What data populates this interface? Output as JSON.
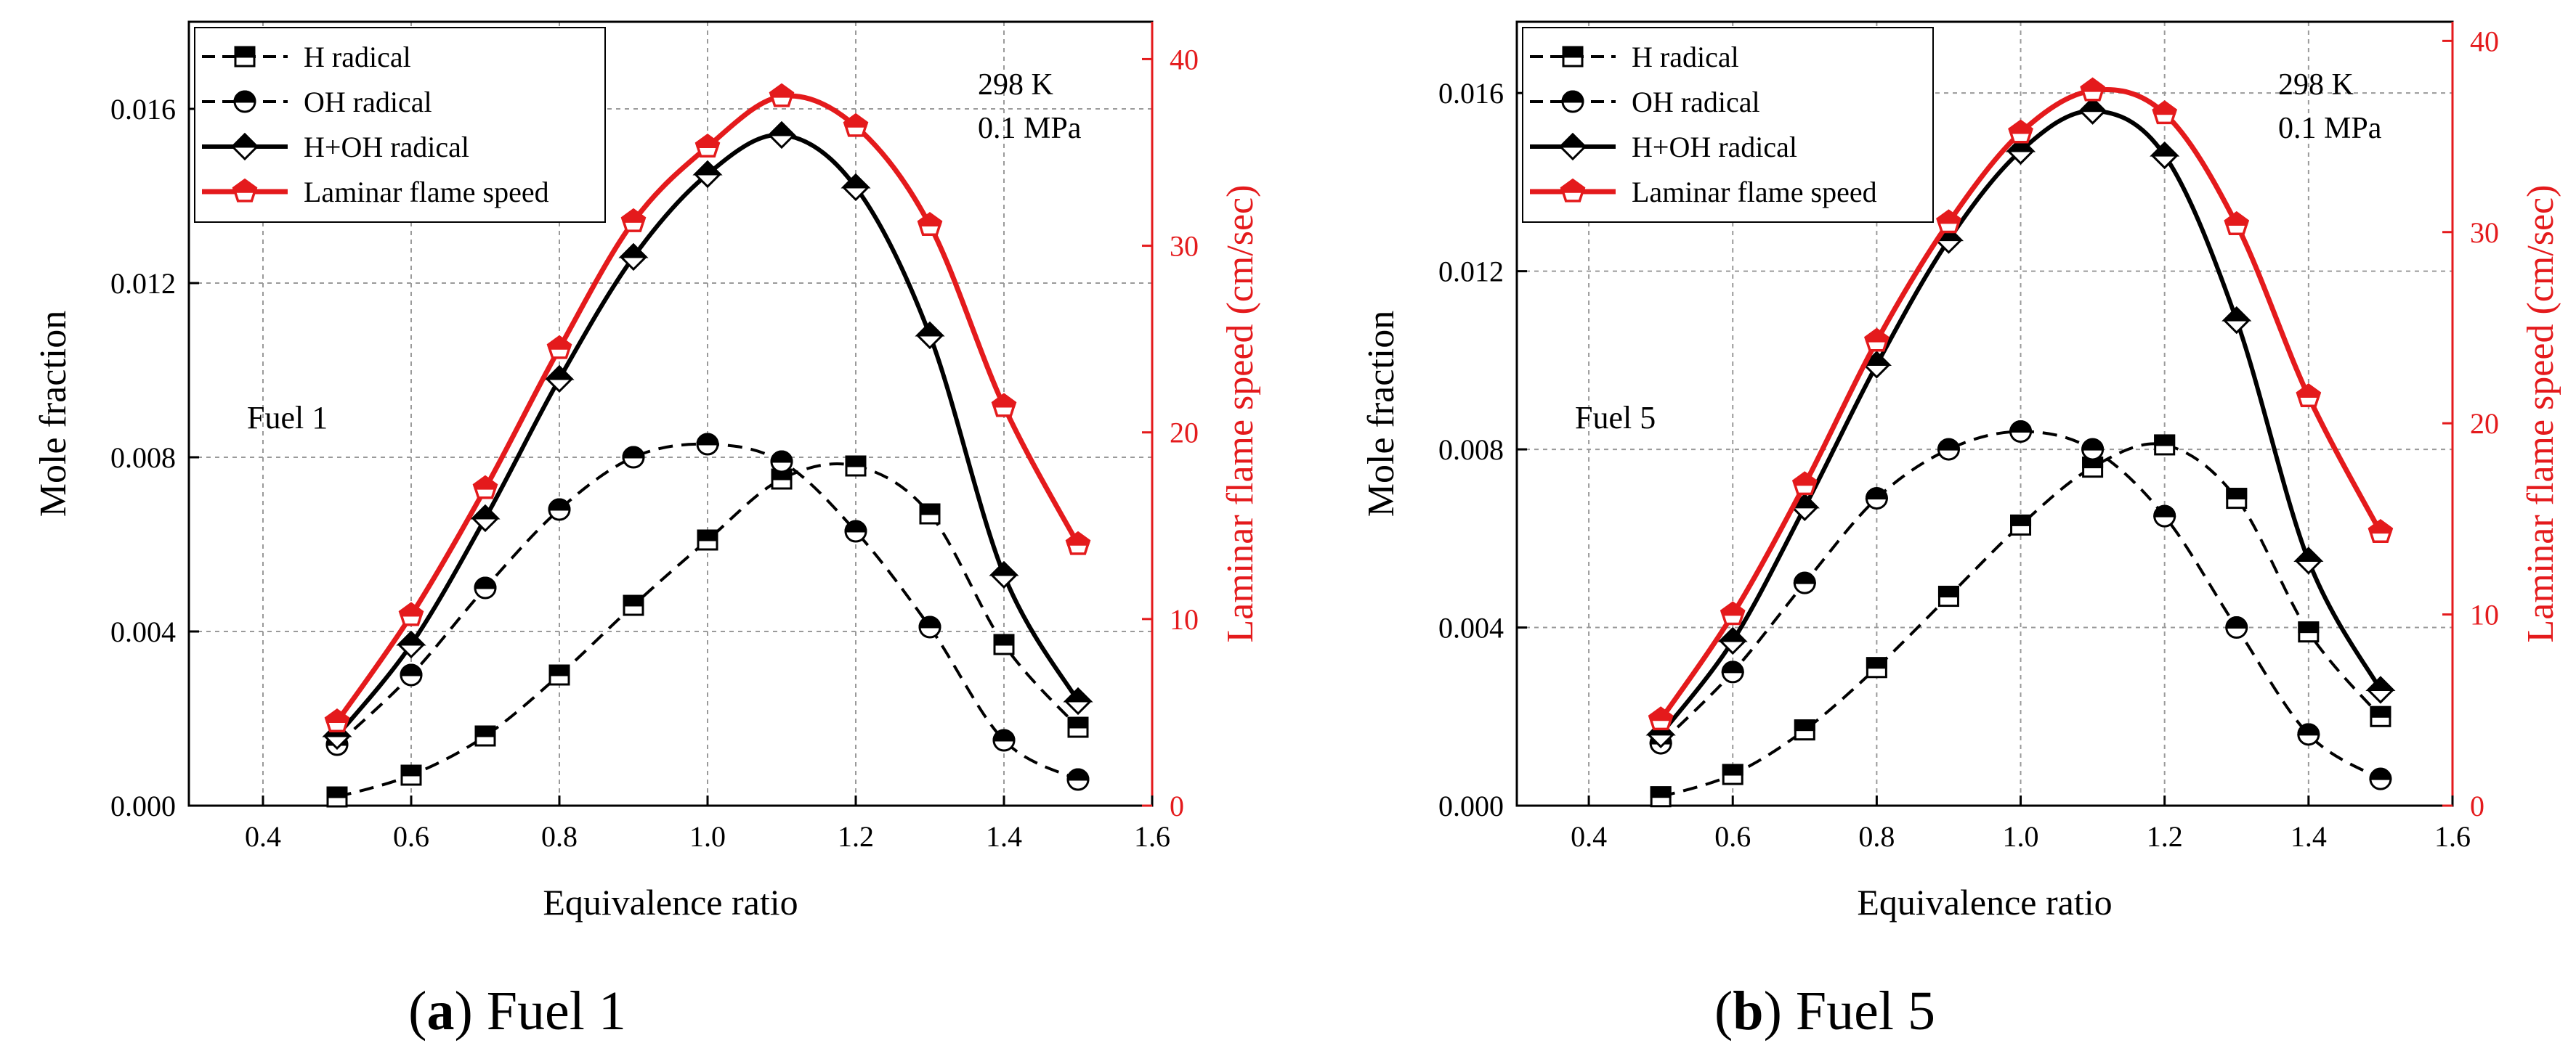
{
  "figure": {
    "panels": [
      {
        "id": "a",
        "caption_letter": "a",
        "caption_text": "Fuel 1",
        "fuel_label": "Fuel 1",
        "caption_paren_open": "(",
        "caption_paren_close": ")"
      },
      {
        "id": "b",
        "caption_letter": "b",
        "caption_text": "Fuel 5",
        "fuel_label": "Fuel 5",
        "caption_paren_open": "(",
        "caption_paren_close": ")"
      }
    ]
  },
  "colors": {
    "flame": "#e41a1c",
    "radical": "#000000",
    "grid": "#9a9a9a"
  },
  "chart_data": [
    {
      "type": "line",
      "panel": "a",
      "title": "Fuel 1",
      "annotation": [
        "298 K",
        "0.1 MPa"
      ],
      "xlabel": "Equivalence ratio",
      "ylabel": "Mole fraction",
      "y2label": "Laminar flame speed (cm/sec)",
      "xlim": [
        0.3,
        1.6
      ],
      "ylim": [
        0,
        0.018
      ],
      "y2lim": [
        0,
        42
      ],
      "xticks": [
        0.4,
        0.6,
        0.8,
        1.0,
        1.2,
        1.4,
        1.6
      ],
      "xtick_labels": [
        "0.4",
        "0.6",
        "0.8",
        "1.0",
        "1.2",
        "1.4",
        "1.6"
      ],
      "yticks": [
        0,
        0.004,
        0.008,
        0.012,
        0.016
      ],
      "ytick_labels": [
        "0.000",
        "0.004",
        "0.008",
        "0.012",
        "0.016"
      ],
      "y2ticks": [
        0,
        10,
        20,
        30,
        40
      ],
      "y2tick_labels": [
        "0",
        "10",
        "20",
        "30",
        "40"
      ],
      "grid": true,
      "legend_position": "top-left",
      "x": [
        0.5,
        0.6,
        0.7,
        0.8,
        0.9,
        1.0,
        1.1,
        1.2,
        1.3,
        1.4,
        1.5
      ],
      "series": [
        {
          "name": "H radical",
          "axis": "left",
          "style": "dashed",
          "marker": "square-half",
          "color": "#000000",
          "values": [
            0.0002,
            0.0007,
            0.0016,
            0.003,
            0.0046,
            0.0061,
            0.0075,
            0.0078,
            0.0067,
            0.0037,
            0.0018
          ]
        },
        {
          "name": "OH radical",
          "axis": "left",
          "style": "dashed",
          "marker": "circle-half",
          "color": "#000000",
          "values": [
            0.0014,
            0.003,
            0.005,
            0.0068,
            0.008,
            0.0083,
            0.0079,
            0.0063,
            0.0041,
            0.0015,
            0.0006
          ]
        },
        {
          "name": "H+OH radical",
          "axis": "left",
          "style": "solid",
          "marker": "diamond-half",
          "color": "#000000",
          "values": [
            0.0016,
            0.0037,
            0.0066,
            0.0098,
            0.0126,
            0.0145,
            0.0154,
            0.0142,
            0.0108,
            0.0053,
            0.0024
          ]
        },
        {
          "name": "Laminar flame speed",
          "axis": "right",
          "style": "solid",
          "marker": "pentagon-half",
          "color": "#e41a1c",
          "values": [
            4.5,
            10.2,
            17.0,
            24.5,
            31.3,
            35.3,
            38.0,
            36.4,
            31.1,
            21.4,
            14.0
          ]
        }
      ]
    },
    {
      "type": "line",
      "panel": "b",
      "title": "Fuel 5",
      "annotation": [
        "298 K",
        "0.1 MPa"
      ],
      "xlabel": "Equivalence ratio",
      "ylabel": "Mole fraction",
      "y2label": "Laminar flame speed (cm/sec)",
      "xlim": [
        0.3,
        1.6
      ],
      "ylim": [
        0,
        0.0176
      ],
      "y2lim": [
        0,
        41
      ],
      "xticks": [
        0.4,
        0.6,
        0.8,
        1.0,
        1.2,
        1.4,
        1.6
      ],
      "xtick_labels": [
        "0.4",
        "0.6",
        "0.8",
        "1.0",
        "1.2",
        "1.4",
        "1.6"
      ],
      "yticks": [
        0,
        0.004,
        0.008,
        0.012,
        0.016
      ],
      "ytick_labels": [
        "0.000",
        "0.004",
        "0.008",
        "0.012",
        "0.016"
      ],
      "y2ticks": [
        0,
        10,
        20,
        30,
        40
      ],
      "y2tick_labels": [
        "0",
        "10",
        "20",
        "30",
        "40"
      ],
      "grid": true,
      "legend_position": "top-left",
      "x": [
        0.5,
        0.6,
        0.7,
        0.8,
        0.9,
        1.0,
        1.1,
        1.2,
        1.3,
        1.4,
        1.5
      ],
      "series": [
        {
          "name": "H radical",
          "axis": "left",
          "style": "dashed",
          "marker": "square-half",
          "color": "#000000",
          "values": [
            0.0002,
            0.0007,
            0.0017,
            0.0031,
            0.0047,
            0.0063,
            0.0076,
            0.0081,
            0.0069,
            0.0039,
            0.002
          ]
        },
        {
          "name": "OH radical",
          "axis": "left",
          "style": "dashed",
          "marker": "circle-half",
          "color": "#000000",
          "values": [
            0.0014,
            0.003,
            0.005,
            0.0069,
            0.008,
            0.0084,
            0.008,
            0.0065,
            0.004,
            0.0016,
            0.0006
          ]
        },
        {
          "name": "H+OH radical",
          "axis": "left",
          "style": "solid",
          "marker": "diamond-half",
          "color": "#000000",
          "values": [
            0.0016,
            0.0037,
            0.0067,
            0.0099,
            0.0127,
            0.0147,
            0.0156,
            0.0146,
            0.0109,
            0.0055,
            0.0026
          ]
        },
        {
          "name": "Laminar flame speed",
          "axis": "right",
          "style": "solid",
          "marker": "pentagon-half",
          "color": "#e41a1c",
          "values": [
            4.5,
            10.0,
            16.8,
            24.3,
            30.5,
            35.2,
            37.4,
            36.2,
            30.4,
            21.4,
            14.3
          ]
        }
      ]
    }
  ]
}
